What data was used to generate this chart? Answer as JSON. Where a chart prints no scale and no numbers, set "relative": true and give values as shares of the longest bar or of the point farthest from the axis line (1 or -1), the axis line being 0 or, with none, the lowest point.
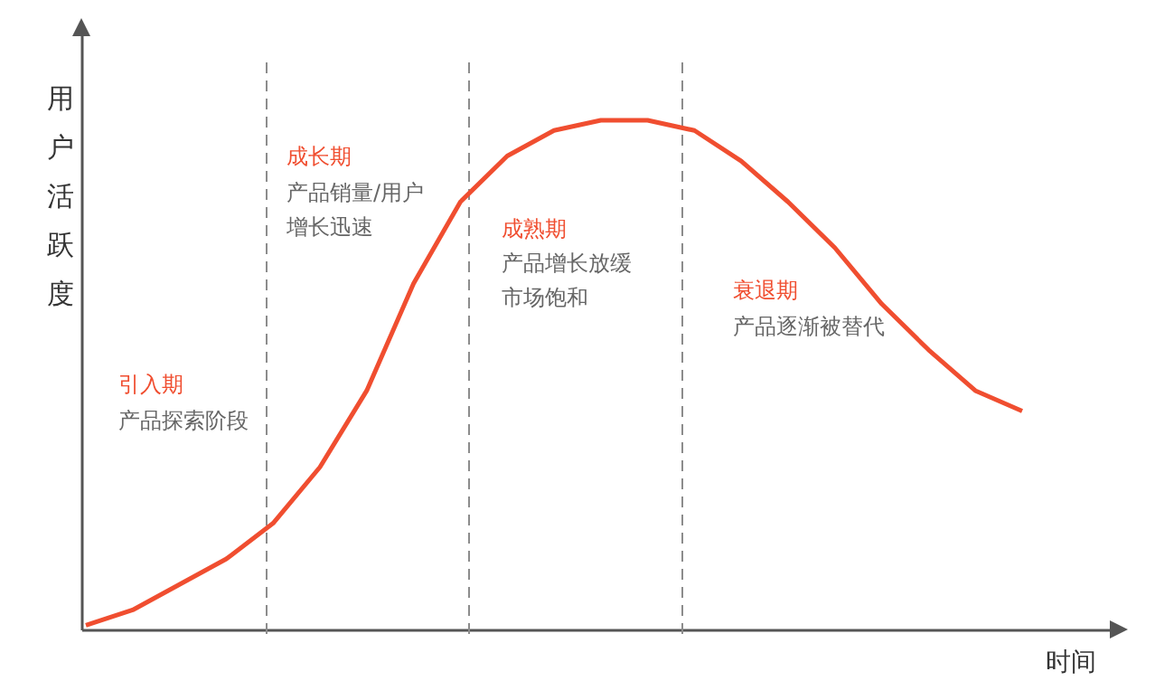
{
  "chart_data": {
    "type": "line",
    "relative": true,
    "xlabel": "时间",
    "ylabel": "用户活跃度",
    "categories": [
      null,
      null,
      null,
      null,
      null,
      null,
      null,
      null,
      null,
      null,
      null,
      null,
      null,
      null,
      null,
      null,
      null,
      null,
      null,
      null,
      null
    ],
    "series": [
      {
        "color": "#f04e30",
        "values": [
          0.01,
          0.04,
          0.09,
          0.14,
          0.21,
          0.32,
          0.47,
          0.68,
          0.84,
          0.93,
          0.98,
          1.0,
          1.0,
          0.98,
          0.92,
          0.84,
          0.75,
          0.64,
          0.55,
          0.47,
          0.43
        ]
      }
    ],
    "annotations": [
      "引入期",
      "产品探索阶段",
      "成长期",
      "产品销量/用户",
      "增长迅速",
      "成熟期",
      "产品增长放缓",
      "市场饱和",
      "衰退期",
      "产品逐渐被替代"
    ],
    "grid": false,
    "marker": "none",
    "line_style": "solid"
  }
}
